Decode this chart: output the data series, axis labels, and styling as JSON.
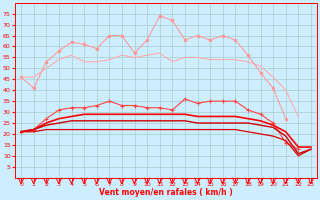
{
  "xlabel": "Vent moyen/en rafales ( km/h )",
  "bg_color": "#cceeff",
  "grid_color": "#aacccc",
  "x": [
    0,
    1,
    2,
    3,
    4,
    5,
    6,
    7,
    8,
    9,
    10,
    11,
    12,
    13,
    14,
    15,
    16,
    17,
    18,
    19,
    20,
    21,
    22,
    23
  ],
  "series": [
    {
      "name": "rafales_top",
      "color": "#ff9999",
      "linewidth": 0.8,
      "marker": "o",
      "markersize": 1.8,
      "values": [
        46,
        41,
        53,
        58,
        62,
        61,
        59,
        65,
        65,
        57,
        63,
        74,
        72,
        63,
        65,
        63,
        65,
        63,
        56,
        48,
        41,
        27,
        null,
        null
      ]
    },
    {
      "name": "rafales_mid",
      "color": "#ffaaaa",
      "linewidth": 0.8,
      "marker": null,
      "markersize": 0,
      "values": [
        46,
        46,
        50,
        54,
        56,
        53,
        53,
        54,
        56,
        55,
        56,
        57,
        53,
        55,
        55,
        54,
        54,
        54,
        53,
        51,
        46,
        40,
        28,
        null
      ]
    },
    {
      "name": "vent_moyen_markers",
      "color": "#ff4444",
      "linewidth": 0.8,
      "marker": "+",
      "markersize": 3,
      "values": [
        21,
        22,
        27,
        31,
        32,
        32,
        33,
        35,
        33,
        33,
        32,
        32,
        31,
        36,
        34,
        35,
        35,
        35,
        31,
        29,
        25,
        16,
        13,
        null
      ]
    },
    {
      "name": "vent_line1",
      "color": "#ff0000",
      "linewidth": 1.2,
      "marker": null,
      "markersize": 0,
      "values": [
        21,
        22,
        25,
        27,
        28,
        29,
        29,
        29,
        29,
        29,
        29,
        29,
        29,
        29,
        28,
        28,
        28,
        28,
        27,
        26,
        24,
        21,
        14,
        14
      ]
    },
    {
      "name": "vent_line2",
      "color": "#cc0000",
      "linewidth": 1.0,
      "marker": null,
      "markersize": 0,
      "values": [
        21,
        22,
        24,
        25,
        26,
        26,
        26,
        26,
        26,
        26,
        26,
        26,
        26,
        26,
        25,
        25,
        25,
        25,
        25,
        24,
        23,
        19,
        11,
        13
      ]
    },
    {
      "name": "vent_line3_falling",
      "color": "#dd0000",
      "linewidth": 0.9,
      "marker": null,
      "markersize": 0,
      "values": [
        21,
        21,
        22,
        22,
        22,
        22,
        22,
        22,
        22,
        22,
        22,
        22,
        22,
        22,
        22,
        22,
        22,
        22,
        21,
        20,
        19,
        17,
        10,
        13
      ]
    }
  ],
  "ylim": [
    0,
    80
  ],
  "yticks": [
    5,
    10,
    15,
    20,
    25,
    30,
    35,
    40,
    45,
    50,
    55,
    60,
    65,
    70,
    75
  ],
  "xticks": [
    0,
    1,
    2,
    3,
    4,
    5,
    6,
    7,
    8,
    9,
    10,
    11,
    12,
    13,
    14,
    15,
    16,
    17,
    18,
    19,
    20,
    21,
    22,
    23
  ],
  "tick_color": "#ff0000",
  "label_color": "#ff0000"
}
